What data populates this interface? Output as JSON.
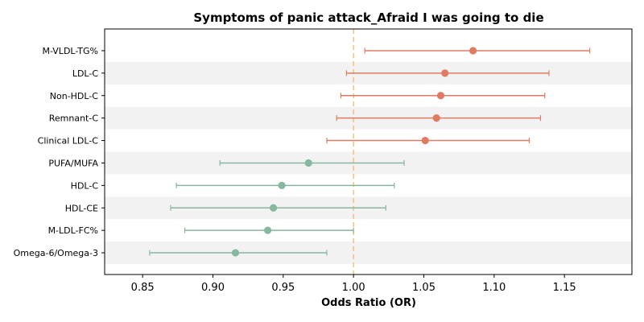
{
  "chart_data": {
    "type": "forest",
    "title": "Symptoms of panic attack_Afraid I was going to die",
    "xlabel": "Odds Ratio (OR)",
    "ylabel": "",
    "xlim": [
      0.823,
      1.198
    ],
    "xticks": [
      0.85,
      0.9,
      0.95,
      1.0,
      1.05,
      1.1,
      1.15
    ],
    "reference_line": 1.0,
    "reference_line_style": "dashed",
    "row_banding": true,
    "colors": {
      "positive": "#E07B62",
      "negative": "#86B8A0",
      "reference": "#F5C07F",
      "band": "#F2F2F2"
    },
    "rows": [
      {
        "label": "M-VLDL-TG%",
        "or": 1.085,
        "ci_low": 1.008,
        "ci_high": 1.168,
        "group": "positive"
      },
      {
        "label": "LDL-C",
        "or": 1.065,
        "ci_low": 0.995,
        "ci_high": 1.139,
        "group": "positive"
      },
      {
        "label": "Non-HDL-C",
        "or": 1.062,
        "ci_low": 0.991,
        "ci_high": 1.136,
        "group": "positive"
      },
      {
        "label": "Remnant-C",
        "or": 1.059,
        "ci_low": 0.988,
        "ci_high": 1.133,
        "group": "positive"
      },
      {
        "label": "Clinical LDL-C",
        "or": 1.051,
        "ci_low": 0.981,
        "ci_high": 1.125,
        "group": "positive"
      },
      {
        "label": "PUFA/MUFA",
        "or": 0.968,
        "ci_low": 0.905,
        "ci_high": 1.036,
        "group": "negative"
      },
      {
        "label": "HDL-C",
        "or": 0.949,
        "ci_low": 0.874,
        "ci_high": 1.029,
        "group": "negative"
      },
      {
        "label": "HDL-CE",
        "or": 0.943,
        "ci_low": 0.87,
        "ci_high": 1.023,
        "group": "negative"
      },
      {
        "label": "M-LDL-FC%",
        "or": 0.939,
        "ci_low": 0.88,
        "ci_high": 1.0,
        "group": "negative"
      },
      {
        "label": "Omega-6/Omega-3",
        "or": 0.916,
        "ci_low": 0.855,
        "ci_high": 0.981,
        "group": "negative"
      }
    ]
  }
}
